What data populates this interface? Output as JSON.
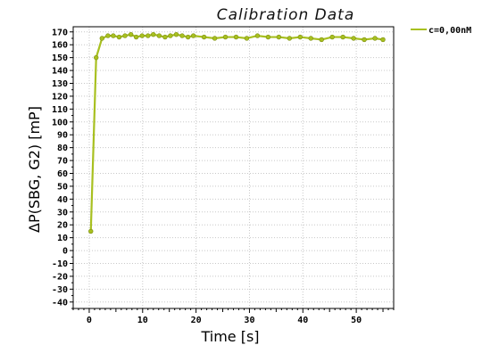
{
  "chart_data": {
    "type": "line",
    "title": "Calibration Data",
    "xlabel": "Time [s]",
    "ylabel": "ΔP(SBG, G2) [mP]",
    "xlim": [
      -3,
      57
    ],
    "ylim": [
      -45,
      174
    ],
    "x_ticks": [
      0,
      10,
      20,
      30,
      40,
      50
    ],
    "y_ticks": [
      -40,
      -30,
      -20,
      -10,
      0,
      10,
      20,
      30,
      40,
      50,
      60,
      70,
      80,
      90,
      100,
      110,
      120,
      130,
      140,
      150,
      160,
      170
    ],
    "grid": true,
    "legend_position": "right",
    "series": [
      {
        "name": "c=0,00nM",
        "color": "#a8c020",
        "x": [
          0.3,
          1.3,
          2.4,
          3.5,
          4.5,
          5.6,
          6.7,
          7.8,
          8.8,
          9.9,
          11.0,
          12.0,
          13.1,
          14.2,
          15.2,
          16.3,
          17.4,
          18.5,
          19.5,
          21.5,
          23.5,
          25.5,
          27.5,
          29.5,
          31.5,
          33.5,
          35.5,
          37.5,
          39.5,
          41.5,
          43.5,
          45.5,
          47.5,
          49.5,
          51.5,
          53.5,
          55.0
        ],
        "y": [
          15,
          150,
          165,
          167,
          167,
          166,
          167,
          168,
          166,
          167,
          167,
          168,
          167,
          166,
          167,
          168,
          167,
          166,
          167,
          166,
          165,
          166,
          166,
          165,
          167,
          166,
          166,
          165,
          166,
          165,
          164,
          166,
          166,
          165,
          164,
          165,
          164
        ]
      }
    ]
  }
}
